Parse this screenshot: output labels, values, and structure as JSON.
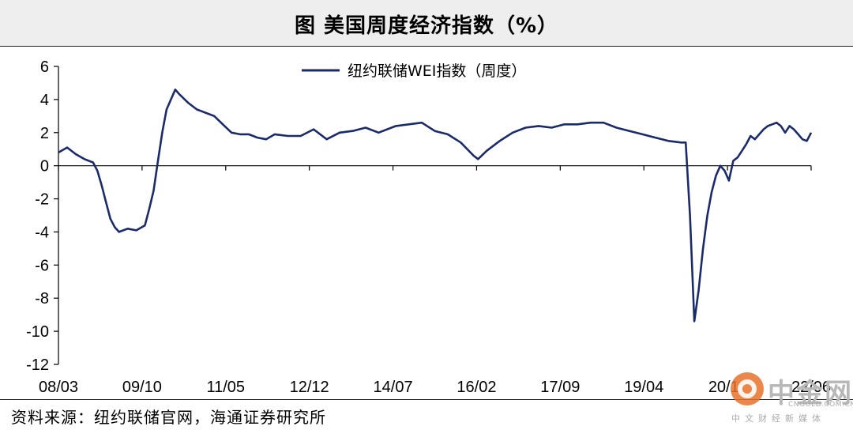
{
  "title": "图  美国周度经济指数（%）",
  "source": "资料来源：纽约联储官网，海通证券研究所",
  "watermark": {
    "text": "中金网",
    "sub": "CNGOLD.COM.CN",
    "cn": "中文财经新媒体"
  },
  "colors": {
    "line": "#1b2a6b",
    "axis": "#000000"
  },
  "chart_data": {
    "type": "line",
    "title": "",
    "xlabel": "",
    "ylabel": "",
    "ylim": [
      -12,
      6
    ],
    "yticks": [
      6,
      4,
      2,
      0,
      -2,
      -4,
      -6,
      -8,
      -10,
      -12
    ],
    "tick_labels": [
      "08/03",
      "09/10",
      "11/05",
      "12/12",
      "14/07",
      "16/02",
      "17/09",
      "19/04",
      "20/11",
      "22/06"
    ],
    "xlim": [
      "2008-01",
      "2022-07"
    ],
    "legend": "top-center",
    "grid": false,
    "series": [
      {
        "name": "纽约联储WEI指数（周度）",
        "x": [
          "2008-01",
          "2008-03",
          "2008-05",
          "2008-07",
          "2008-09",
          "2008-10",
          "2008-11",
          "2008-12",
          "2009-01",
          "2009-02",
          "2009-03",
          "2009-05",
          "2009-07",
          "2009-09",
          "2009-10",
          "2009-11",
          "2009-12",
          "2010-01",
          "2010-02",
          "2010-03",
          "2010-04",
          "2010-05",
          "2010-07",
          "2010-09",
          "2010-11",
          "2011-01",
          "2011-03",
          "2011-05",
          "2011-07",
          "2011-09",
          "2011-11",
          "2012-01",
          "2012-03",
          "2012-06",
          "2012-09",
          "2012-12",
          "2013-03",
          "2013-06",
          "2013-09",
          "2013-12",
          "2014-03",
          "2014-07",
          "2014-10",
          "2015-01",
          "2015-04",
          "2015-07",
          "2015-10",
          "2016-01",
          "2016-02",
          "2016-04",
          "2016-07",
          "2016-10",
          "2017-01",
          "2017-04",
          "2017-07",
          "2017-10",
          "2018-01",
          "2018-04",
          "2018-07",
          "2018-10",
          "2019-01",
          "2019-04",
          "2019-07",
          "2019-10",
          "2020-01",
          "2020-02",
          "2020-03",
          "2020-04",
          "2020-05",
          "2020-06",
          "2020-07",
          "2020-08",
          "2020-09",
          "2020-10",
          "2020-11",
          "2020-12",
          "2021-01",
          "2021-02",
          "2021-03",
          "2021-04",
          "2021-05",
          "2021-06",
          "2021-07",
          "2021-08",
          "2021-09",
          "2021-10",
          "2021-11",
          "2021-12",
          "2022-01",
          "2022-02",
          "2022-03",
          "2022-04",
          "2022-05",
          "2022-06",
          "2022-07"
        ],
        "values": [
          0.8,
          1.1,
          0.7,
          0.4,
          0.2,
          -0.3,
          -1.2,
          -2.2,
          -3.2,
          -3.7,
          -4.0,
          -3.8,
          -3.9,
          -3.6,
          -2.6,
          -1.5,
          0.3,
          2.0,
          3.4,
          4.0,
          4.6,
          4.3,
          3.8,
          3.4,
          3.2,
          3.0,
          2.5,
          2.0,
          1.9,
          1.9,
          1.7,
          1.6,
          1.9,
          1.8,
          1.8,
          2.2,
          1.6,
          2.0,
          2.1,
          2.3,
          2.0,
          2.4,
          2.5,
          2.6,
          2.1,
          1.9,
          1.4,
          0.6,
          0.4,
          0.9,
          1.5,
          2.0,
          2.3,
          2.4,
          2.3,
          2.5,
          2.5,
          2.6,
          2.6,
          2.3,
          2.1,
          1.9,
          1.7,
          1.5,
          1.4,
          1.4,
          -3.0,
          -9.4,
          -7.5,
          -5.0,
          -3.0,
          -1.6,
          -0.6,
          0.0,
          -0.3,
          -0.9,
          0.3,
          0.5,
          0.9,
          1.3,
          1.8,
          1.6,
          1.9,
          2.2,
          2.4,
          2.5,
          2.6,
          2.4,
          2.0,
          2.4,
          2.2,
          1.9,
          1.6,
          1.5,
          2.0
        ]
      }
    ]
  }
}
